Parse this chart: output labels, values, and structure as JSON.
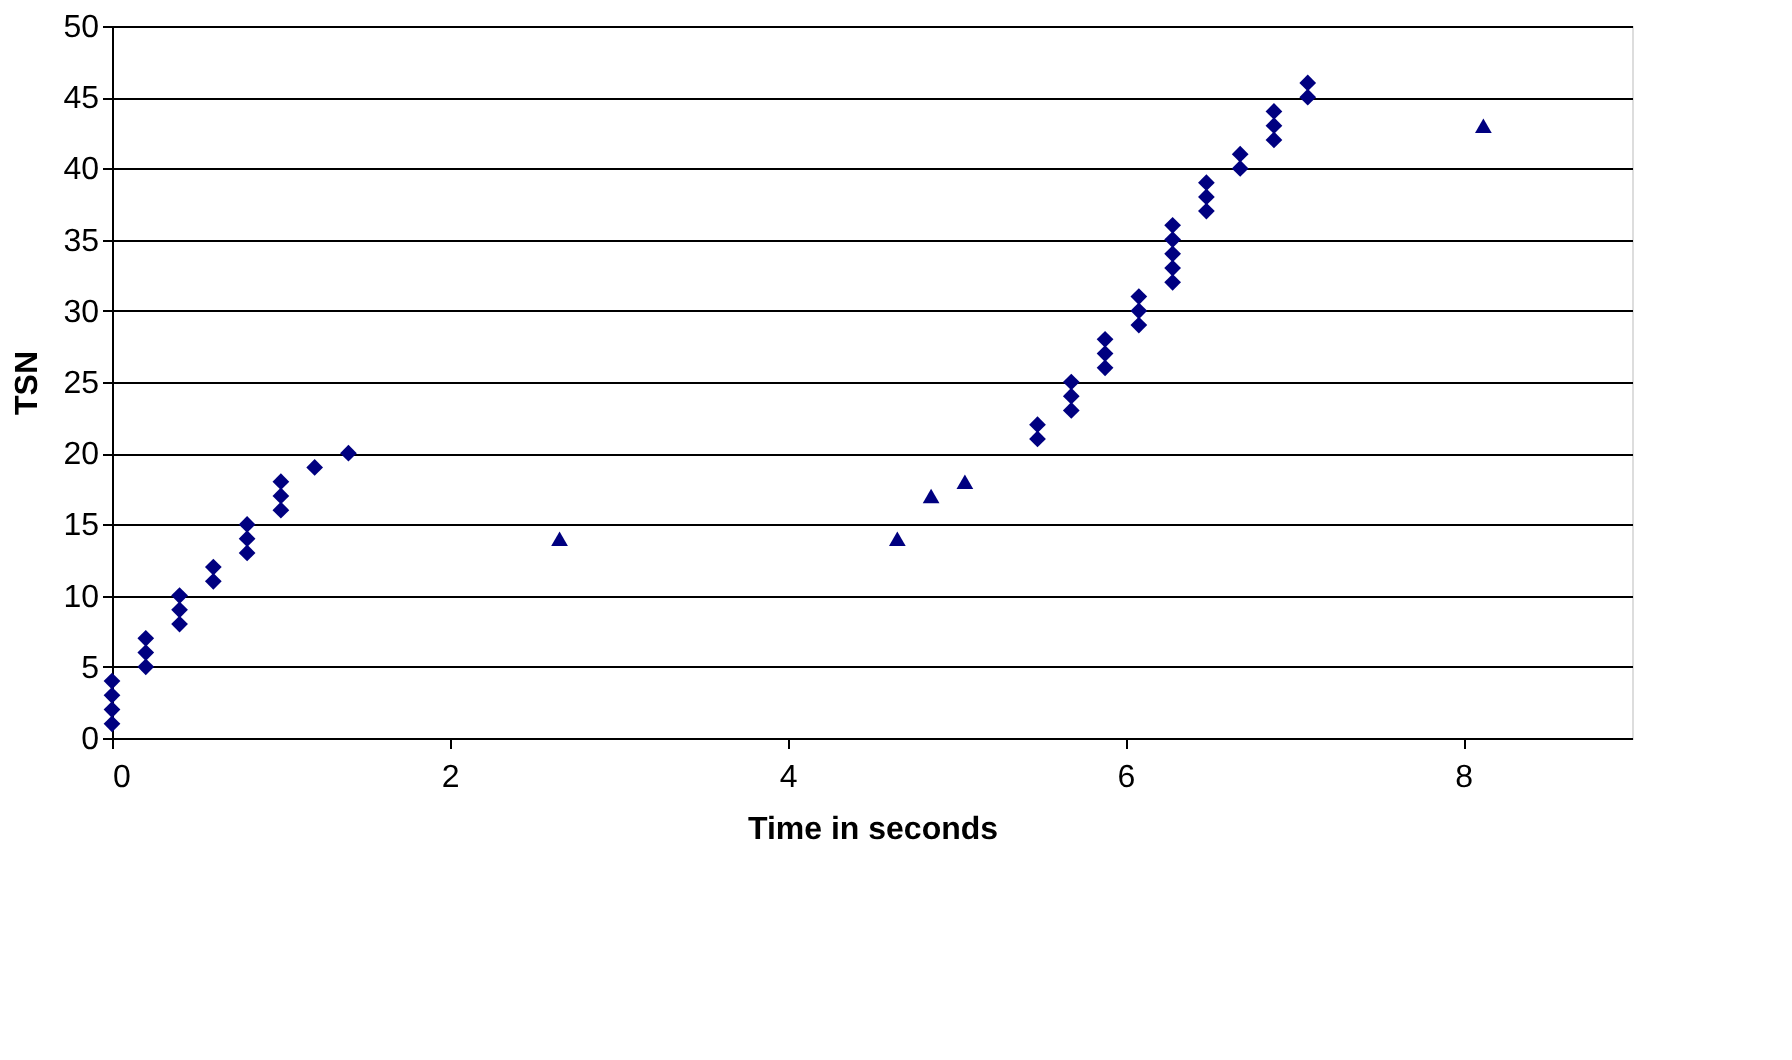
{
  "chart_data": {
    "type": "scatter",
    "xlabel": "Time in seconds",
    "ylabel": "TSN",
    "xlim": [
      0,
      9
    ],
    "xticks": [
      0,
      2,
      4,
      6,
      8
    ],
    "ylim": [
      0,
      50
    ],
    "yticks": [
      0,
      5,
      10,
      15,
      20,
      25,
      30,
      35,
      40,
      45,
      50
    ],
    "grid": "y",
    "series": [
      {
        "color": "#000080",
        "marker": "diamond",
        "x": [
          0,
          0,
          0,
          0,
          0.2,
          0.2,
          0.2,
          0.4,
          0.4,
          0.4,
          0.6,
          0.6,
          0.8,
          0.8,
          0.8,
          1.0,
          1.0,
          1.0,
          1.2,
          1.4,
          5.48,
          5.48,
          5.68,
          5.68,
          5.68,
          5.88,
          5.88,
          5.88,
          6.08,
          6.08,
          6.08,
          6.28,
          6.28,
          6.28,
          6.28,
          6.28,
          6.48,
          6.48,
          6.48,
          6.68,
          6.68,
          6.88,
          6.88,
          6.88,
          7.08,
          7.08
        ],
        "values": [
          1,
          2,
          3,
          4,
          5,
          6,
          7,
          8,
          9,
          10,
          11,
          12,
          13,
          14,
          15,
          16,
          17,
          18,
          19,
          20,
          21,
          22,
          23,
          24,
          25,
          26,
          27,
          28,
          29,
          30,
          31,
          32,
          33,
          34,
          35,
          36,
          37,
          38,
          39,
          40,
          41,
          42,
          43,
          44,
          45,
          46
        ]
      },
      {
        "color": "#000080",
        "marker": "triangle",
        "x": [
          2.65,
          4.65,
          4.85,
          5.05,
          8.12
        ],
        "values": [
          14,
          14,
          17,
          18,
          43
        ]
      }
    ]
  }
}
